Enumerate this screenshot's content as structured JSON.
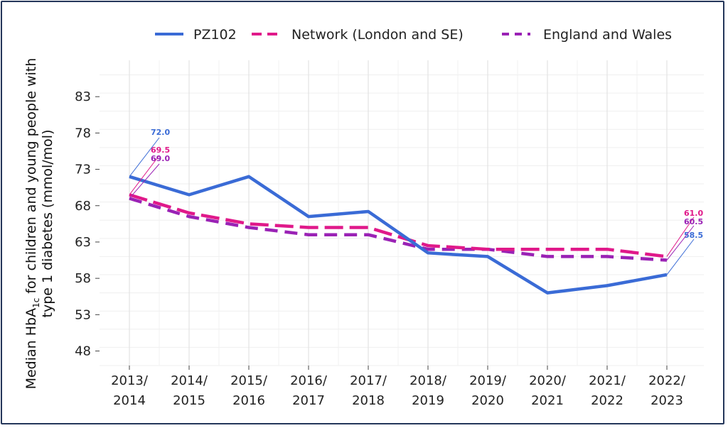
{
  "chart_data": {
    "type": "line",
    "categories": [
      [
        "2013/",
        "2014"
      ],
      [
        "2014/",
        "2015"
      ],
      [
        "2015/",
        "2016"
      ],
      [
        "2016/",
        "2017"
      ],
      [
        "2017/",
        "2018"
      ],
      [
        "2018/",
        "2019"
      ],
      [
        "2019/",
        "2020"
      ],
      [
        "2020/",
        "2021"
      ],
      [
        "2021/",
        "2022"
      ],
      [
        "2022/",
        "2023"
      ]
    ],
    "series": [
      {
        "name": "PZ102",
        "color": "#3a6bd6",
        "style": "solid",
        "values": [
          72.0,
          69.5,
          72.0,
          66.5,
          67.2,
          61.5,
          61.0,
          56.0,
          57.0,
          58.5
        ],
        "first_label": "72.0",
        "last_label": "58.5"
      },
      {
        "name": "Network (London and SE)",
        "color": "#e0198a",
        "style": "dashed",
        "values": [
          69.5,
          67.0,
          65.5,
          65.0,
          65.0,
          62.5,
          62.0,
          62.0,
          62.0,
          61.0
        ],
        "first_label": "69.5",
        "last_label": "61.0"
      },
      {
        "name": "England and Wales",
        "color": "#9a22b5",
        "style": "dashed",
        "values": [
          69.0,
          66.5,
          65.0,
          64.0,
          64.0,
          62.0,
          62.0,
          61.0,
          61.0,
          60.5
        ],
        "first_label": "69.0",
        "last_label": "60.5"
      }
    ],
    "y_ticks": [
      "48",
      "53",
      "58",
      "63",
      "68",
      "73",
      "78",
      "83"
    ],
    "ylim": [
      46,
      88
    ],
    "ylabel": {
      "line1_prefix": "Median HbA",
      "line1_sub": "1c",
      "line1_suffix": " for children and young people with",
      "line2": "type 1 diabetes (mmol/mol)"
    },
    "grid": true,
    "legend_position": "top"
  }
}
